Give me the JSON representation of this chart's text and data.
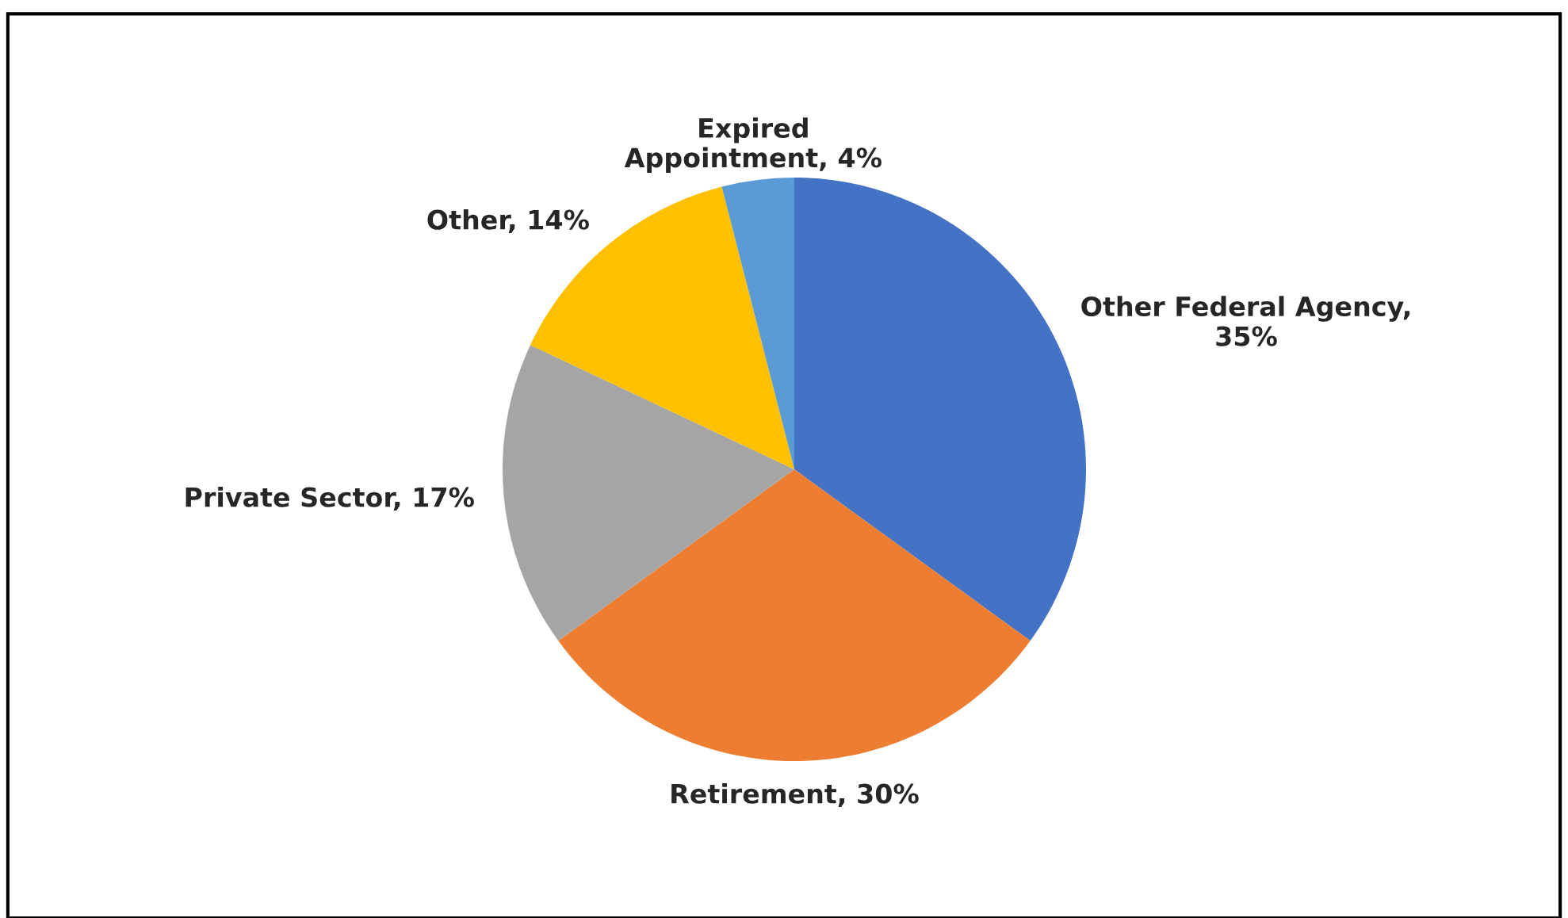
{
  "chart_data": {
    "type": "pie",
    "categories": [
      "Other Federal Agency, 35%",
      "Retirement, 30%",
      "Private Sector, 17%",
      "Other, 14%",
      "Expired Appointment, 4%"
    ],
    "values": [
      35,
      30,
      17,
      14,
      4
    ],
    "colors": [
      "#4472c4",
      "#ed7d31",
      "#a5a5a5",
      "#ffc000",
      "#5b9bd5"
    ]
  }
}
